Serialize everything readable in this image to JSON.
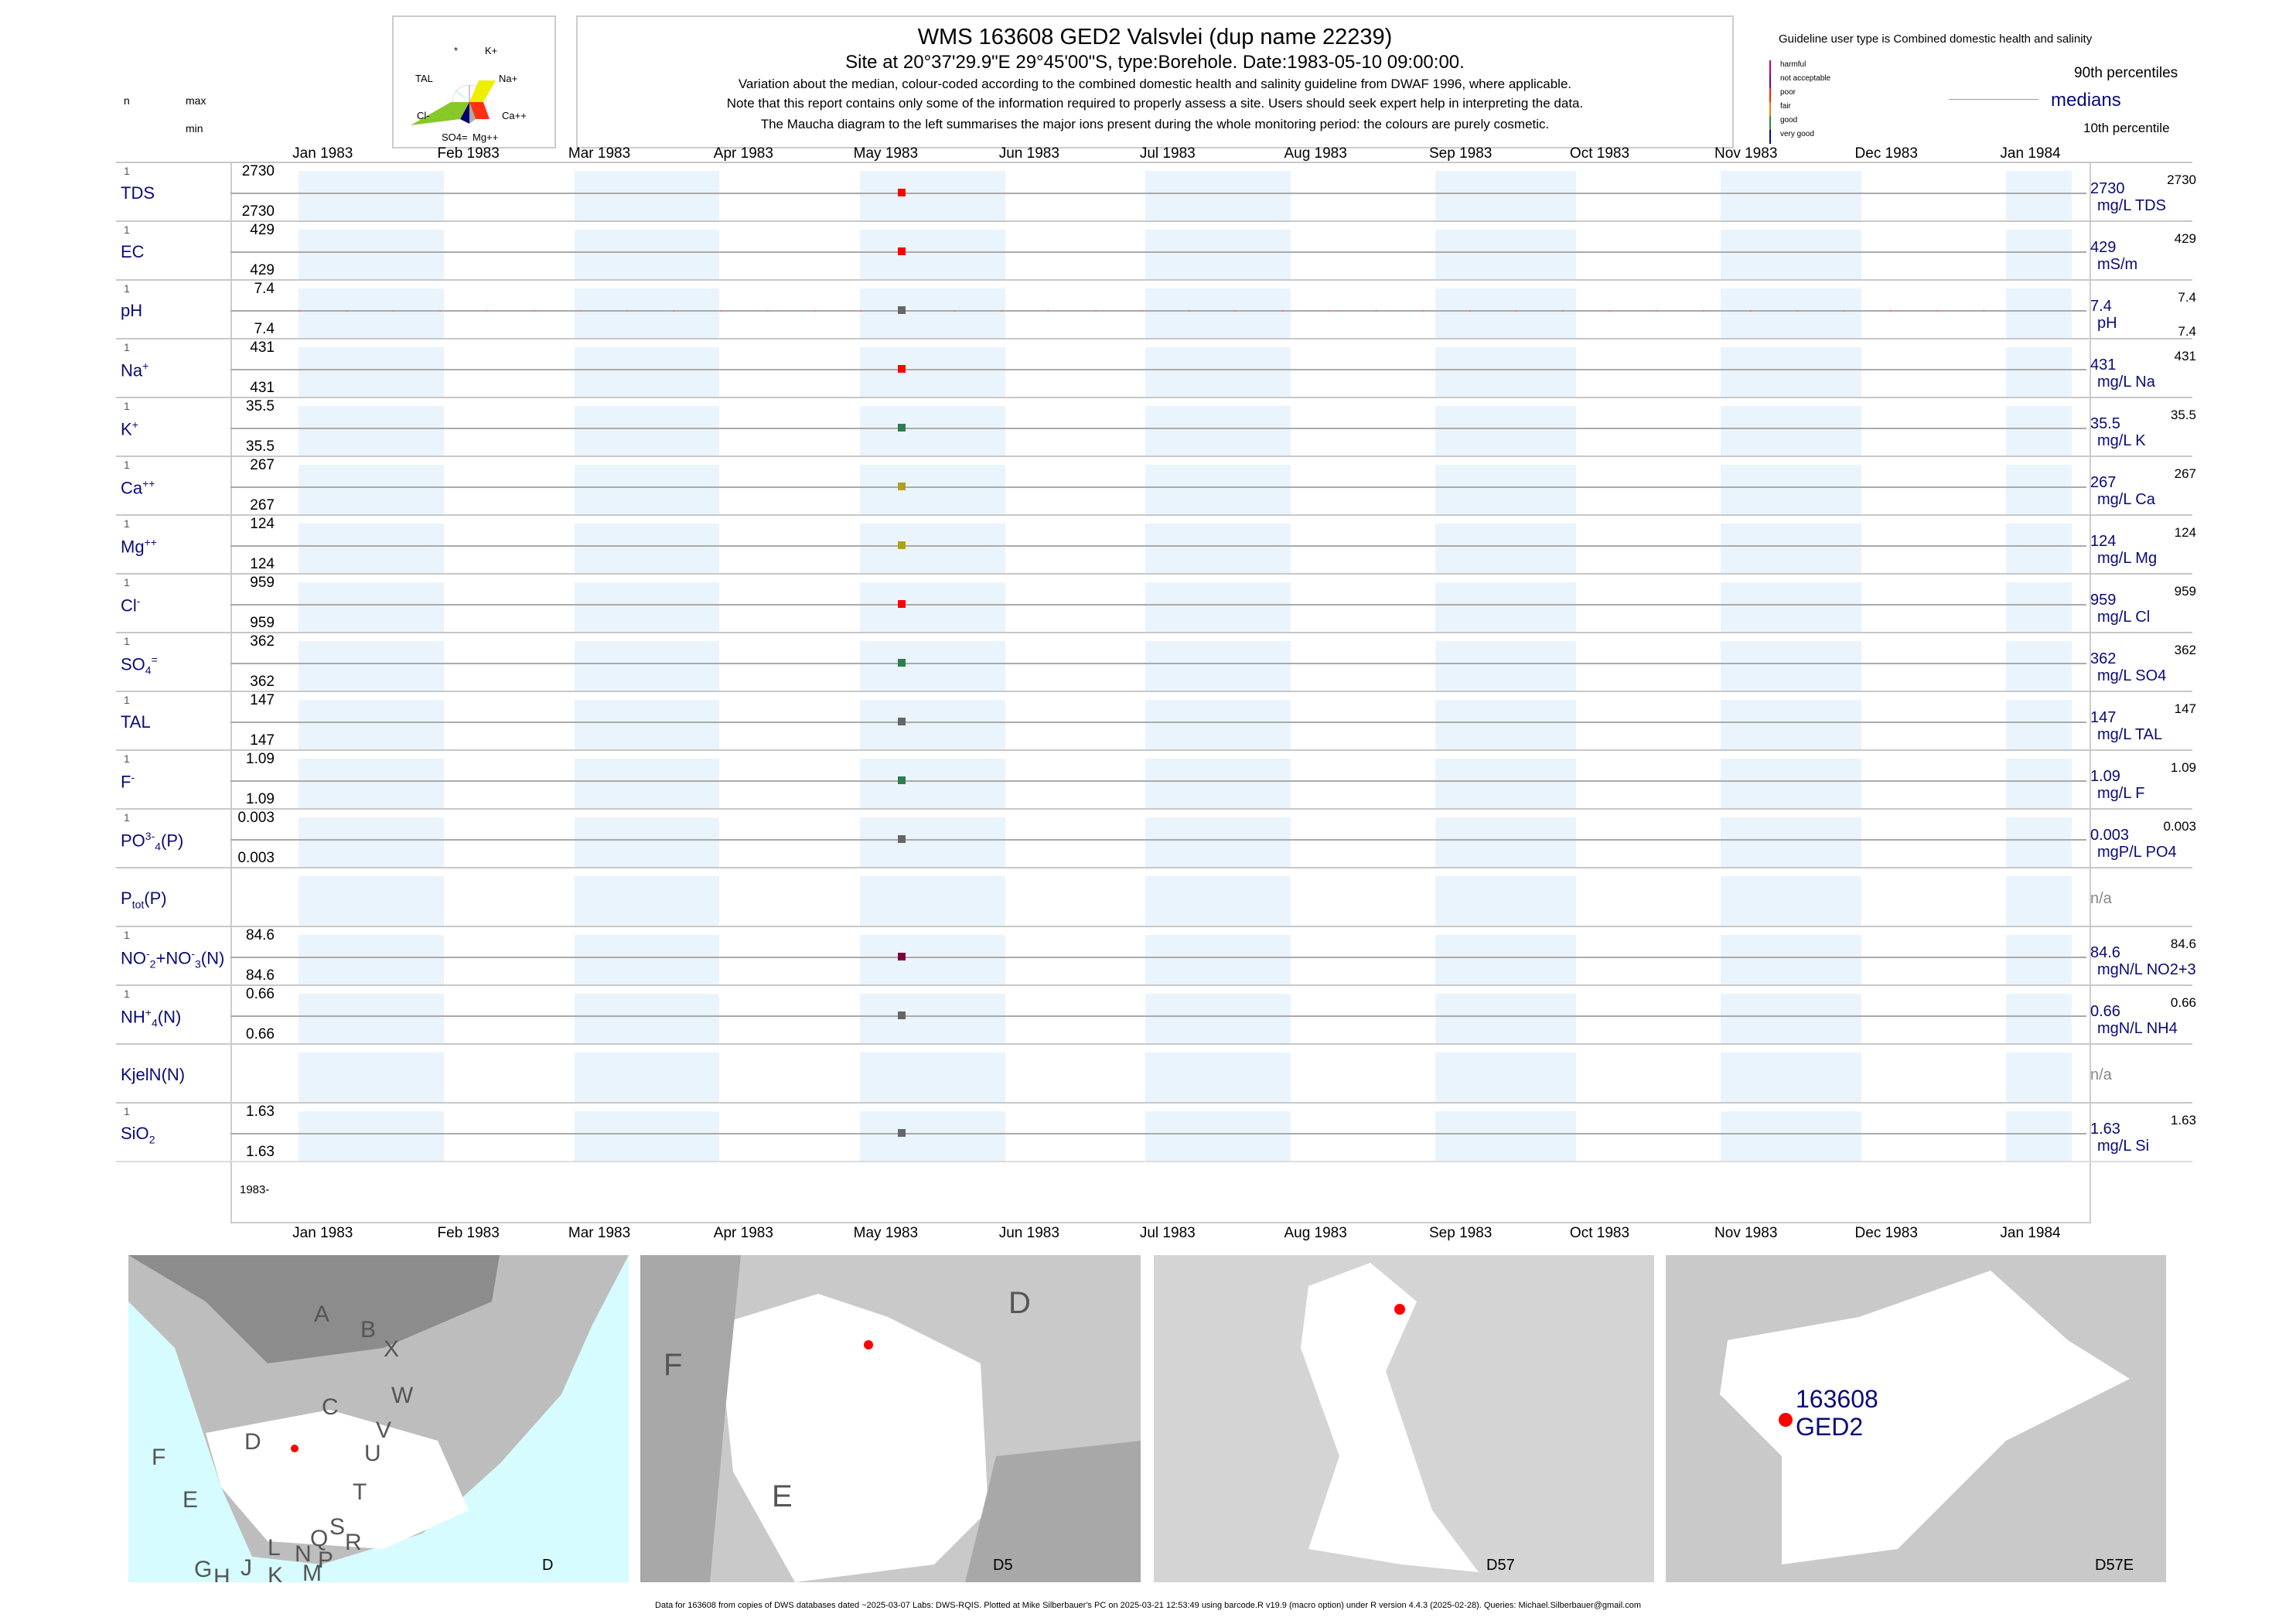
{
  "title": "WMS 163608 GED2 Valsvlei (dup name 22239)",
  "subtitle": "Site at 20°37'29.9\"E 29°45'00\"S, type:Borehole. Date:1983-05-10 09:00:00.",
  "notes": [
    "Variation about the median,  colour-coded according to the combined domestic health and salinity guideline from DWAF 1996, where applicable.",
    "Note that this report contains only some of the information required to properly assess a site. Users should seek expert help in interpreting the data.",
    "The Maucha diagram to the left summarises the major ions present during the whole monitoring period: the colours are purely cosmetic."
  ],
  "maucha": {
    "labels": [
      "*",
      "K+",
      "TAL",
      "Na+",
      "Cl-",
      "Ca++",
      "SO4=",
      "Mg++"
    ]
  },
  "header_left": {
    "n": "n",
    "max": "max",
    "min": "min"
  },
  "legend": {
    "guideline": "Guideline user type is Combined domestic health and salinity",
    "classes": [
      "harmful",
      "not acceptable",
      "poor",
      "fair",
      "good",
      "very good"
    ],
    "class_colors": [
      "#c0006a",
      "#7a00a0",
      "#ff2000",
      "#d09000",
      "#2e8b2e",
      "#0000c0"
    ],
    "p90": "90th percentiles",
    "medians": "medians",
    "p10": "10th percentile"
  },
  "chart_data": {
    "type": "scatter",
    "title": "WMS 163608 GED2 Valsvlei (dup name 22239)",
    "x_ticks": [
      "Jan 1983",
      "Feb 1983",
      "Mar 1983",
      "Apr 1983",
      "May 1983",
      "Jun 1983",
      "Jul 1983",
      "Aug 1983",
      "Sep 1983",
      "Oct 1983",
      "Nov 1983",
      "Dec 1983",
      "Jan 1984"
    ],
    "x_tick_days": [
      0,
      31,
      59,
      90,
      120,
      151,
      181,
      212,
      243,
      273,
      304,
      334,
      365
    ],
    "sample_day": 129,
    "year_label": "1983-",
    "series": [
      {
        "label": [
          [
            "TDS",
            ""
          ]
        ],
        "n": "1",
        "max": "2730",
        "min": "2730",
        "value": "2730",
        "unit": "mg/L TDS",
        "rmax": "2730",
        "rmin": "",
        "color": "#ff0000"
      },
      {
        "label": [
          [
            "EC",
            ""
          ]
        ],
        "n": "1",
        "max": "429",
        "min": "429",
        "value": "429",
        "unit": "mS/m",
        "rmax": "429",
        "rmin": "",
        "color": "#ff0000"
      },
      {
        "label": [
          [
            "pH",
            ""
          ]
        ],
        "n": "1",
        "max": "7.4",
        "min": "7.4",
        "value": "7.4",
        "unit": "pH",
        "rmax": "7.4",
        "rmin": "7.4",
        "color": "#666666"
      },
      {
        "label": [
          [
            "Na",
            ""
          ],
          [
            "+",
            "sup"
          ]
        ],
        "n": "1",
        "max": "431",
        "min": "431",
        "value": "431",
        "unit": "mg/L Na",
        "rmax": "431",
        "rmin": "",
        "color": "#ff0000"
      },
      {
        "label": [
          [
            "K",
            ""
          ],
          [
            "+",
            "sup"
          ]
        ],
        "n": "1",
        "max": "35.5",
        "min": "35.5",
        "value": "35.5",
        "unit": "mg/L K",
        "rmax": "35.5",
        "rmin": "",
        "color": "#2e7d4f"
      },
      {
        "label": [
          [
            "Ca",
            ""
          ],
          [
            "++",
            "sup"
          ]
        ],
        "n": "1",
        "max": "267",
        "min": "267",
        "value": "267",
        "unit": "mg/L Ca",
        "rmax": "267",
        "rmin": "",
        "color": "#b0a020"
      },
      {
        "label": [
          [
            "Mg",
            ""
          ],
          [
            "++",
            "sup"
          ]
        ],
        "n": "1",
        "max": "124",
        "min": "124",
        "value": "124",
        "unit": "mg/L Mg",
        "rmax": "124",
        "rmin": "",
        "color": "#b0a020"
      },
      {
        "label": [
          [
            "Cl",
            ""
          ],
          [
            "-",
            "sup"
          ]
        ],
        "n": "1",
        "max": "959",
        "min": "959",
        "value": "959",
        "unit": "mg/L Cl",
        "rmax": "959",
        "rmin": "",
        "color": "#ff0000"
      },
      {
        "label": [
          [
            "SO",
            ""
          ],
          [
            "4",
            "sub"
          ],
          [
            "=",
            "sup"
          ]
        ],
        "n": "1",
        "max": "362",
        "min": "362",
        "value": "362",
        "unit": "mg/L SO4",
        "rmax": "362",
        "rmin": "",
        "color": "#2e7d4f"
      },
      {
        "label": [
          [
            "TAL",
            ""
          ]
        ],
        "n": "1",
        "max": "147",
        "min": "147",
        "value": "147",
        "unit": "mg/L TAL",
        "rmax": "147",
        "rmin": "",
        "color": "#666666"
      },
      {
        "label": [
          [
            "F",
            ""
          ],
          [
            "-",
            "sup"
          ]
        ],
        "n": "1",
        "max": "1.09",
        "min": "1.09",
        "value": "1.09",
        "unit": "mg/L F",
        "rmax": "1.09",
        "rmin": "",
        "color": "#2e7d4f"
      },
      {
        "label": [
          [
            "PO",
            ""
          ],
          [
            "3-",
            "sup"
          ],
          [
            "4",
            "sub"
          ],
          [
            "(P)",
            ""
          ]
        ],
        "n": "1",
        "max": "0.003",
        "min": "0.003",
        "value": "0.003",
        "unit": "mgP/L PO4",
        "rmax": "0.003",
        "rmin": "",
        "color": "#666666"
      },
      {
        "label": [
          [
            "P",
            ""
          ],
          [
            "tot",
            "sub"
          ],
          [
            "(P)",
            ""
          ]
        ],
        "n": "",
        "max": "",
        "min": "",
        "value": "n/a",
        "unit": "",
        "rmax": "",
        "rmin": "",
        "color": ""
      },
      {
        "label": [
          [
            "NO",
            ""
          ],
          [
            "-",
            "sup"
          ],
          [
            "2",
            "sub"
          ],
          [
            "+NO",
            ""
          ],
          [
            "-",
            "sup"
          ],
          [
            "3",
            "sub"
          ],
          [
            "(N)",
            ""
          ]
        ],
        "n": "1",
        "max": "84.6",
        "min": "84.6",
        "value": "84.6",
        "unit": "mgN/L NO2+3",
        "rmax": "84.6",
        "rmin": "",
        "color": "#800040"
      },
      {
        "label": [
          [
            "NH",
            ""
          ],
          [
            "+",
            "sup"
          ],
          [
            "4",
            "sub"
          ],
          [
            "(N)",
            ""
          ]
        ],
        "n": "1",
        "max": "0.66",
        "min": "0.66",
        "value": "0.66",
        "unit": "mgN/L NH4",
        "rmax": "0.66",
        "rmin": "",
        "color": "#666666"
      },
      {
        "label": [
          [
            "KjelN(N)",
            ""
          ]
        ],
        "n": "",
        "max": "",
        "min": "",
        "value": "n/a",
        "unit": "",
        "rmax": "",
        "rmin": "",
        "color": ""
      },
      {
        "label": [
          [
            "SiO",
            ""
          ],
          [
            "2",
            "sub"
          ]
        ],
        "n": "1",
        "max": "1.63",
        "min": "1.63",
        "value": "1.63",
        "unit": "mg/L Si",
        "rmax": "1.63",
        "rmin": "",
        "color": "#666666"
      }
    ]
  },
  "maps": {
    "m1": {
      "letters": [
        "A",
        "B",
        "X",
        "C",
        "W",
        "D",
        "V",
        "U",
        "T",
        "F",
        "E",
        "S",
        "R",
        "Q",
        "N",
        "L",
        "P",
        "M",
        "K",
        "J",
        "H",
        "G"
      ],
      "corner": "D"
    },
    "m2": {
      "letters": [
        "D",
        "F",
        "E"
      ],
      "corner": "D5"
    },
    "m3": {
      "corner": "D57"
    },
    "m4": {
      "site_id": "163608",
      "site_name": "GED2",
      "corner": "D57E"
    }
  },
  "footer": "Data for 163608 from copies of DWS databases dated ~2025-03-07 Labs: DWS-RQIS. Plotted at Mike Silberbauer's PC on 2025-03-21 12:53:49 using barcode.R v19.9 (macro option) under R version 4.4.3 (2025-02-28). Queries: Michael.Silberbauer@gmail.com"
}
